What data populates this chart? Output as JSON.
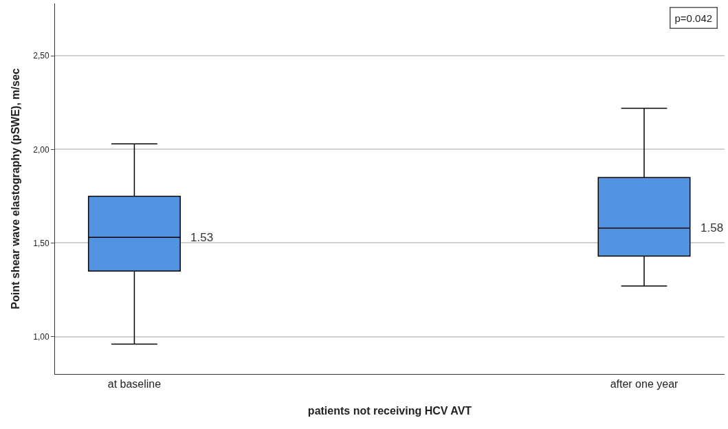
{
  "chart_data": {
    "type": "box",
    "xlabel": "patients not receiving HCV AVT",
    "ylabel": "Point shear wave elastography (pSWE), m/sec",
    "categories": [
      "at baseline",
      "after one year"
    ],
    "boxes": [
      {
        "low": 0.96,
        "q1": 1.35,
        "median": 1.53,
        "q3": 1.75,
        "high": 2.03
      },
      {
        "low": 1.27,
        "q1": 1.43,
        "median": 1.58,
        "q3": 1.85,
        "high": 2.22
      }
    ],
    "value_labels": [
      "1.53",
      "1.58"
    ],
    "color": "#5294e2",
    "ylim": [
      0.8,
      2.78
    ],
    "yticks": [
      {
        "value": 1.0,
        "label": "1,00"
      },
      {
        "value": 1.5,
        "label": "1,50"
      },
      {
        "value": 2.0,
        "label": "2,00"
      },
      {
        "value": 2.5,
        "label": "2,50"
      }
    ],
    "grid": "y",
    "annotations": [
      "p=0.042"
    ]
  }
}
